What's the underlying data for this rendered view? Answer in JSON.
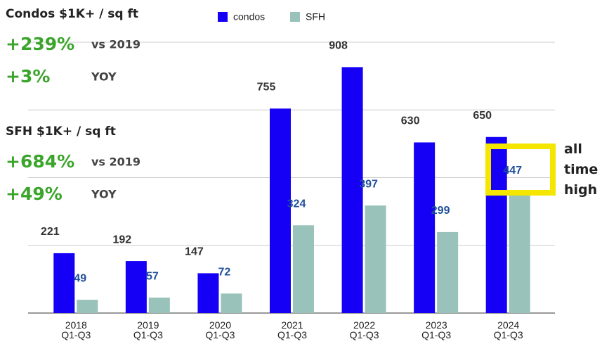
{
  "chart_data": {
    "type": "bar",
    "categories": [
      "2018 Q1-Q3",
      "2019 Q1-Q3",
      "2020 Q1-Q3",
      "2021 Q1-Q3",
      "2022 Q1-Q3",
      "2023 Q1-Q3",
      "2024 Q1-Q3"
    ],
    "series": [
      {
        "name": "condos",
        "color": "#1500f5",
        "label_color": "#333333",
        "values": [
          221,
          192,
          147,
          755,
          908,
          630,
          650
        ]
      },
      {
        "name": "SFH",
        "color": "#98c2ba",
        "label_color": "#1f4f9a",
        "values": [
          49,
          57,
          72,
          324,
          397,
          299,
          447
        ]
      }
    ],
    "ylim": [
      0,
      1000
    ],
    "yticks": [
      0,
      250,
      500,
      750,
      1000
    ],
    "grid": true,
    "annotations": [
      {
        "title": "Condos $1K+ / sq ft",
        "stats": [
          {
            "value": "+239%",
            "note": "vs 2019"
          },
          {
            "value": "+3%",
            "note": "YOY"
          }
        ]
      },
      {
        "title": "SFH $1K+ / sq ft",
        "stats": [
          {
            "value": "+684%",
            "note": "vs 2019"
          },
          {
            "value": "+49%",
            "note": "YOY"
          }
        ]
      }
    ],
    "callout": {
      "text": "all time high",
      "color": "#f5e600"
    }
  }
}
